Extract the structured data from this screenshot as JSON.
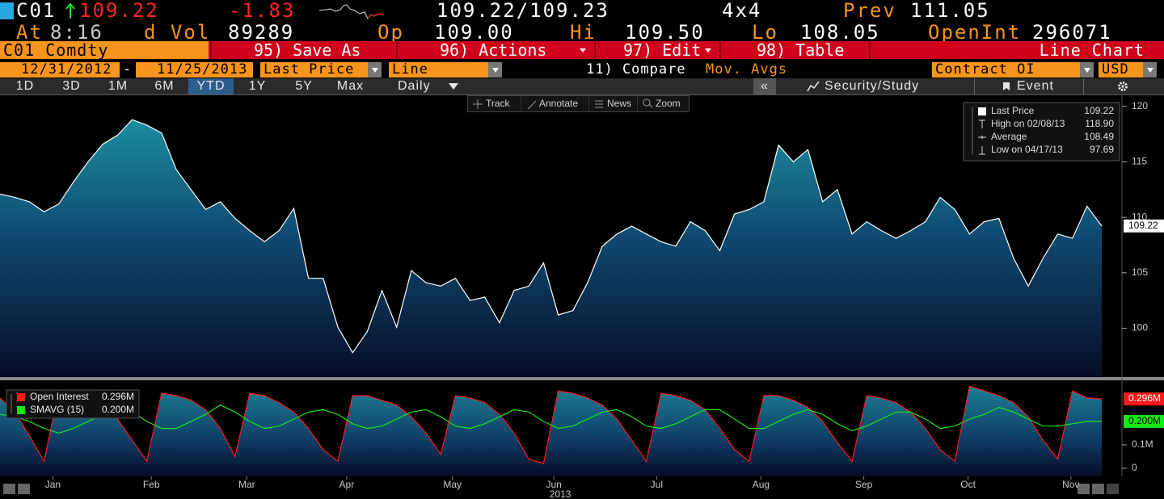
{
  "quote": {
    "ticker": "C01",
    "last": "109.22",
    "change": "-1.83",
    "bid_ask": "109.22/109.23",
    "size": "4x4",
    "prev_label": "Prev",
    "prev": "111.05",
    "time_label": "At",
    "time": "8:16",
    "volume_label": "d Vol",
    "volume": "89289",
    "open_label": "Op",
    "open": "109.00",
    "high_label": "Hi",
    "high": "109.50",
    "low_label": "Lo",
    "low": "108.05",
    "open_int_label": "OpenInt",
    "open_int": "296071"
  },
  "toolbar": {
    "security": "C01 Comdty",
    "buttons": [
      "95) Save As",
      "96) Actions",
      "97) Edit",
      "98) Table"
    ],
    "view": "Line Chart"
  },
  "range_bar": {
    "start": "12/31/2012",
    "separator": "-",
    "end": "11/25/2013",
    "field": "Last Price",
    "style": "Line",
    "compare": "11) Compare",
    "moving_avgs": "Mov. Avgs",
    "lower_study": "Contract OI",
    "currency": "USD"
  },
  "period_tabs": {
    "items": [
      "1D",
      "3D",
      "1M",
      "6M",
      "YTD",
      "1Y",
      "5Y",
      "Max"
    ],
    "selected": "YTD",
    "frequency": "Daily",
    "collapse": "«",
    "security_study": "Security/Study",
    "event": "Event"
  },
  "chart_tools": [
    "Track",
    "Annotate",
    "News",
    "Zoom"
  ],
  "chart_data": [
    {
      "type": "area",
      "xlim": [
        0,
        75
      ],
      "ylim": [
        95.6,
        121
      ],
      "yticks": [
        100,
        105,
        110,
        115,
        120
      ],
      "last_value": 109.22,
      "series": [
        {
          "name": "Last Price",
          "color": "#ffffff",
          "values": [
            112.1,
            111.8,
            111.4,
            110.5,
            111.2,
            113.2,
            115.0,
            116.6,
            117.4,
            118.8,
            118.3,
            117.6,
            114.3,
            112.5,
            110.7,
            111.4,
            109.9,
            108.8,
            107.8,
            108.8,
            110.8,
            104.5,
            104.5,
            100.1,
            97.8,
            99.7,
            103.4,
            100.1,
            105.2,
            104.1,
            103.8,
            104.5,
            102.5,
            102.8,
            100.5,
            103.4,
            103.8,
            105.9,
            101.2,
            101.6,
            104.1,
            107.4,
            108.5,
            109.2,
            108.5,
            107.8,
            107.4,
            109.6,
            108.8,
            107.0,
            110.3,
            110.7,
            111.4,
            116.5,
            115.0,
            116.1,
            111.4,
            112.5,
            108.5,
            109.6,
            108.8,
            108.1,
            108.8,
            109.6,
            111.8,
            110.7,
            108.5,
            109.6,
            109.9,
            106.3,
            103.8,
            106.3,
            108.5,
            108.1,
            111.0,
            109.22
          ]
        }
      ],
      "stats": [
        {
          "label": "High on 02/08/13",
          "value": 118.9,
          "value_label": "118.90"
        },
        {
          "label": "Average",
          "value": 108.49
        },
        {
          "label": "Low on 04/17/13",
          "value": 97.69
        }
      ]
    },
    {
      "type": "area",
      "xlim": [
        0,
        75
      ],
      "ylim": [
        -0.0345,
        0.372
      ],
      "yticks": [
        0,
        {
          "value": 0.1,
          "label": "0.1M"
        }
      ],
      "xticks": [
        {
          "value": 3.6,
          "label": "Jan"
        },
        {
          "value": 10.3,
          "label": "Feb"
        },
        {
          "value": 16.8,
          "label": "Mar"
        },
        {
          "value": 23.6,
          "label": "Apr"
        },
        {
          "value": 30.8,
          "label": "May"
        },
        {
          "value": 37.7,
          "label": "Jun"
        },
        {
          "value": 44.7,
          "label": "Jul"
        },
        {
          "value": 51.8,
          "label": "Aug"
        },
        {
          "value": 58.8,
          "label": "Sep"
        },
        {
          "value": 65.9,
          "label": "Oct"
        },
        {
          "value": 72.9,
          "label": "Nov"
        }
      ],
      "year": "2013",
      "series": [
        {
          "name": "Open Interest",
          "color": "#ff1a1a",
          "last_value_label": "0.296M",
          "values": [
            0.3,
            0.24,
            0.14,
            0.03,
            0.33,
            0.32,
            0.3,
            0.27,
            0.21,
            0.12,
            0.03,
            0.32,
            0.31,
            0.29,
            0.25,
            0.17,
            0.05,
            0.32,
            0.31,
            0.28,
            0.24,
            0.17,
            0.08,
            0.03,
            0.31,
            0.31,
            0.29,
            0.27,
            0.22,
            0.15,
            0.06,
            0.31,
            0.3,
            0.28,
            0.23,
            0.15,
            0.04,
            0.02,
            0.33,
            0.32,
            0.3,
            0.27,
            0.21,
            0.12,
            0.03,
            0.32,
            0.31,
            0.29,
            0.25,
            0.17,
            0.08,
            0.03,
            0.31,
            0.31,
            0.29,
            0.26,
            0.2,
            0.11,
            0.03,
            0.31,
            0.3,
            0.28,
            0.24,
            0.17,
            0.08,
            0.03,
            0.35,
            0.33,
            0.31,
            0.28,
            0.22,
            0.12,
            0.04,
            0.33,
            0.3,
            0.296
          ]
        },
        {
          "name": "SMAVG (15)",
          "type": "line",
          "color": "#19e619",
          "last_value_label": "0.200M",
          "values": [
            0.23,
            0.22,
            0.2,
            0.17,
            0.15,
            0.17,
            0.2,
            0.23,
            0.26,
            0.24,
            0.2,
            0.17,
            0.17,
            0.2,
            0.23,
            0.27,
            0.24,
            0.2,
            0.17,
            0.18,
            0.21,
            0.24,
            0.25,
            0.23,
            0.19,
            0.17,
            0.18,
            0.21,
            0.24,
            0.25,
            0.22,
            0.18,
            0.17,
            0.19,
            0.22,
            0.25,
            0.24,
            0.2,
            0.17,
            0.18,
            0.21,
            0.24,
            0.25,
            0.22,
            0.18,
            0.17,
            0.19,
            0.22,
            0.25,
            0.25,
            0.21,
            0.17,
            0.17,
            0.2,
            0.23,
            0.25,
            0.23,
            0.19,
            0.16,
            0.18,
            0.21,
            0.24,
            0.24,
            0.21,
            0.17,
            0.18,
            0.21,
            0.23,
            0.26,
            0.24,
            0.21,
            0.18,
            0.18,
            0.19,
            0.2,
            0.2
          ]
        }
      ]
    }
  ]
}
